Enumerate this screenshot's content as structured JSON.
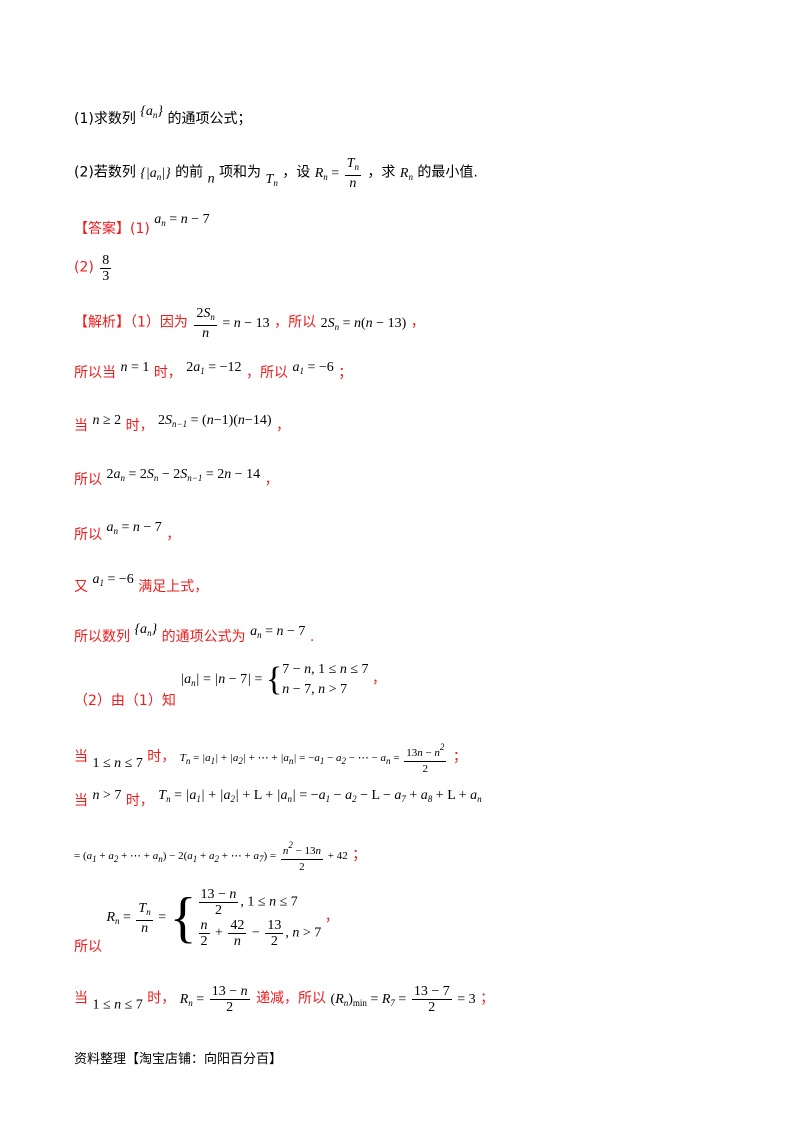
{
  "q1": {
    "text_a": "(1)求数列",
    "text_b": "的通项公式；"
  },
  "q2": {
    "text_a": "(2)若数列",
    "text_b": "的前",
    "text_c": "项和为",
    "text_d": "，设",
    "text_e": "，求",
    "text_f": "的最小值."
  },
  "answer": {
    "label": "【答案】(1)",
    "ans2_label": "(2)"
  },
  "sol": {
    "label": "【解析】（1）因为",
    "t1": "，所以",
    "t2": "，",
    "l2a": "所以当",
    "l2b": "时，",
    "l2c": "，所以",
    "l2d": "；",
    "l3a": "当",
    "l3b": "时，",
    "l3c": "，",
    "l4a": "所以",
    "l4b": "，",
    "l5a": "所以",
    "l5b": "，",
    "l6a": "又",
    "l6b": "满足上式，",
    "l7a": "所以数列",
    "l7b": "的通项公式为",
    "l7c": ".",
    "l8a": "（2）由（1）知",
    "l8b": "，",
    "l9a": "当",
    "l9b": "时，",
    "l9c": "；",
    "l10a": "当",
    "l10b": "时，",
    "l11b": "；",
    "l12a": "所以",
    "l12b": "，",
    "l13a": "当",
    "l13b": "时，",
    "l13c": "递减，所以",
    "l13d": "；"
  },
  "footer": "资料整理【淘宝店铺：向阳百分百】"
}
